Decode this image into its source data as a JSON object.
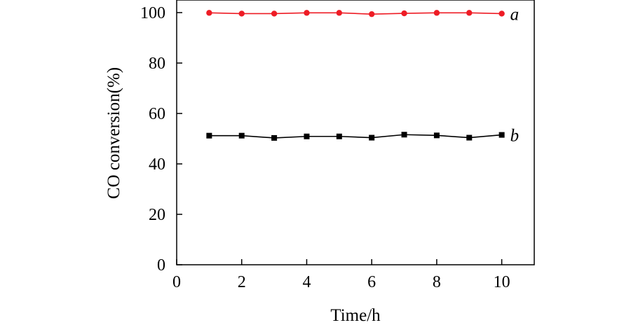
{
  "chart_data": {
    "type": "line",
    "title": "",
    "xlabel": "Time/h",
    "ylabel": "CO conversion(%)",
    "xlim": [
      0,
      11
    ],
    "ylim": [
      0,
      105
    ],
    "x_ticks": [
      "0",
      "2",
      "4",
      "6",
      "8",
      "10"
    ],
    "y_ticks": [
      "0",
      "20",
      "40",
      "60",
      "80",
      "100"
    ],
    "grid": false,
    "legend": "none",
    "x": [
      1,
      2,
      3,
      4,
      5,
      6,
      7,
      8,
      9,
      10
    ],
    "series": [
      {
        "name": "a",
        "color": "#ee1c25",
        "marker": "circle",
        "values": [
          99.9,
          99.6,
          99.6,
          99.9,
          99.9,
          99.4,
          99.7,
          99.9,
          99.9,
          99.6
        ]
      },
      {
        "name": "b",
        "color": "#000000",
        "marker": "square",
        "values": [
          51.2,
          51.2,
          50.3,
          50.9,
          50.9,
          50.4,
          51.6,
          51.3,
          50.4,
          51.5
        ]
      }
    ]
  }
}
